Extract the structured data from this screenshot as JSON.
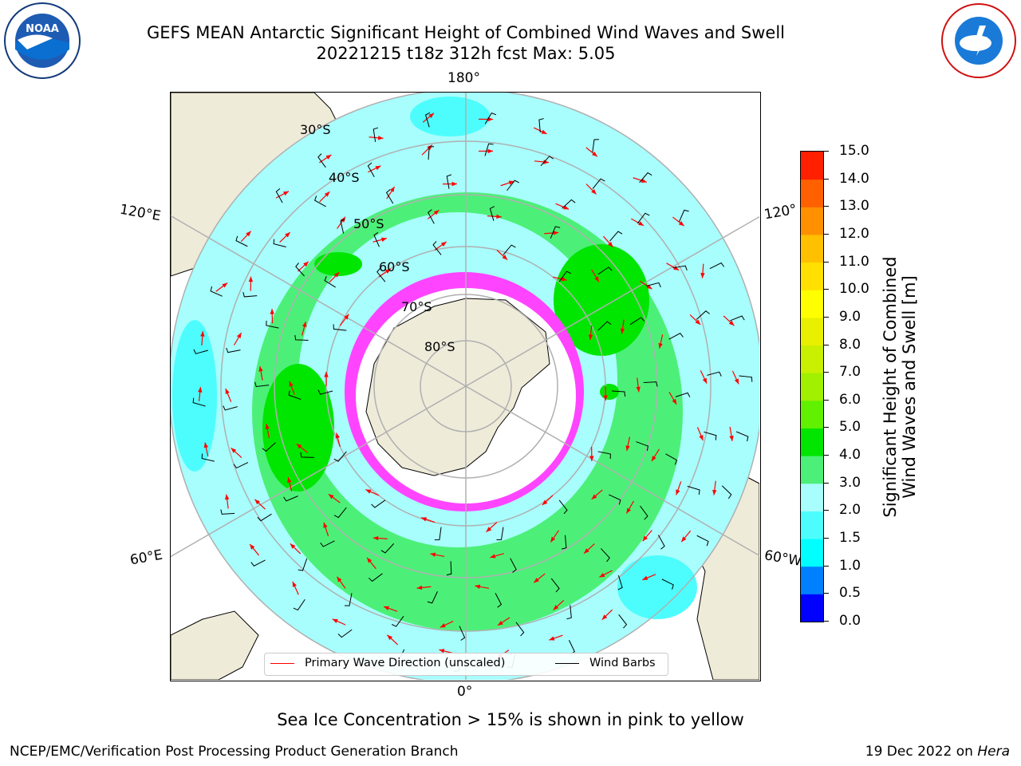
{
  "title": {
    "line1": "GEFS MEAN Antarctic Significant Height of Combined Wind Waves and Swell",
    "line2": "20221215 t18z 312h fcst   Max: 5.05"
  },
  "map": {
    "projection": "south-polar-stereographic",
    "longitude_labels": {
      "top": "180°",
      "bottom": "0°",
      "upper_left": "120°E",
      "lower_left": "60°E",
      "upper_right": "120°",
      "lower_right": "60°W"
    },
    "latitude_labels": [
      "30°S",
      "40°S",
      "50°S",
      "60°S",
      "70°S",
      "80°S"
    ],
    "colors": {
      "land": "#efebd9",
      "ocean_low": "#a8fdfd",
      "ocean_mid": "#4dfdfd",
      "band_3_4": "#4cf078",
      "band_4_5": "#00e600",
      "sea_ice": "#ff44ff",
      "arrow": "#ff0000",
      "barb": "#000000"
    }
  },
  "legend": {
    "wave_direction": "Primary Wave Direction (unscaled)",
    "wind_barbs": "Wind Barbs"
  },
  "colorbar": {
    "label_line1": "Significant Height of Combined",
    "label_line2": "Wind Waves and Swell [m]",
    "ticks": [
      "15.0",
      "14.0",
      "13.0",
      "12.0",
      "11.0",
      "10.0",
      "9.0",
      "8.0",
      "7.0",
      "6.0",
      "5.0",
      "4.0",
      "3.0",
      "2.0",
      "1.5",
      "1.0",
      "0.5",
      "0.0"
    ],
    "colors_bottom_to_top": [
      "#0000ff",
      "#0080ff",
      "#00ffff",
      "#4dfdfd",
      "#a8fdfd",
      "#4cf078",
      "#00e600",
      "#60f000",
      "#a0f000",
      "#c8f000",
      "#e8f000",
      "#ffff00",
      "#ffe000",
      "#ffc000",
      "#ff9000",
      "#ff6000",
      "#ff2000"
    ]
  },
  "sea_ice_note": "Sea Ice Concentration > 15% is shown in pink to yellow",
  "footer": {
    "left": "NCEP/EMC/Verification Post Processing Product Generation Branch",
    "right_date": "19 Dec 2022 on ",
    "right_host": "Hera"
  },
  "logos": {
    "left": "NOAA",
    "right": "NATIONAL WEATHER SERVICE"
  }
}
